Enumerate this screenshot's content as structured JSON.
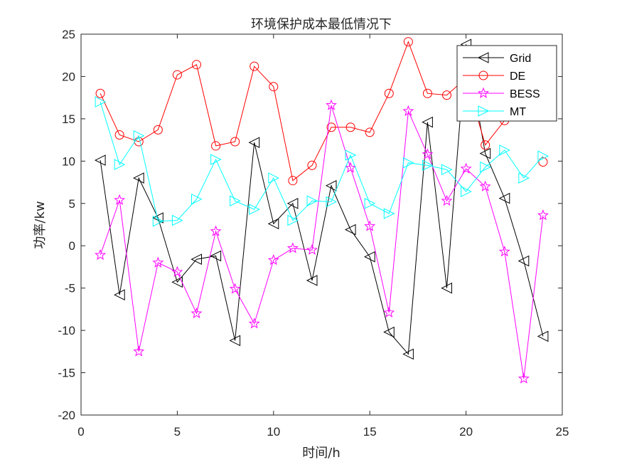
{
  "chart_data": {
    "type": "line",
    "title": "环境保护成本最低情况下",
    "xlabel": "时间/h",
    "ylabel": "功率/kw",
    "xlim": [
      0,
      25
    ],
    "ylim": [
      -20,
      25
    ],
    "xticks": [
      0,
      5,
      10,
      15,
      20,
      25
    ],
    "yticks": [
      -20,
      -15,
      -10,
      -5,
      0,
      5,
      10,
      15,
      20,
      25
    ],
    "grid": false,
    "legend_position": "top-right",
    "x": [
      1,
      2,
      3,
      4,
      5,
      6,
      7,
      8,
      9,
      10,
      11,
      12,
      13,
      14,
      15,
      16,
      17,
      18,
      19,
      20,
      21,
      22,
      23,
      24
    ],
    "series": [
      {
        "name": "Grid",
        "color": "#000000",
        "marker": "triangle-left",
        "values": [
          10.1,
          -5.8,
          8.0,
          3.3,
          -4.3,
          -1.6,
          -1.2,
          -11.2,
          12.2,
          2.6,
          5.0,
          -4.1,
          7.1,
          1.9,
          -1.3,
          -10.2,
          -12.8,
          14.6,
          -5.0,
          23.8,
          10.9,
          5.6,
          -1.8,
          -10.7
        ]
      },
      {
        "name": "DE",
        "color": "#ff0000",
        "marker": "circle",
        "values": [
          18.0,
          13.1,
          12.3,
          13.7,
          20.2,
          21.4,
          11.8,
          12.3,
          21.2,
          18.8,
          7.7,
          9.5,
          14.0,
          14.0,
          13.4,
          18.0,
          24.1,
          18.0,
          17.8,
          19.8,
          11.9,
          14.8,
          null,
          9.9
        ]
      },
      {
        "name": "BESS",
        "color": "#ff00ff",
        "marker": "star",
        "values": [
          -1.1,
          5.4,
          -12.5,
          -2.0,
          -3.1,
          -8.0,
          1.7,
          -5.1,
          -9.2,
          -1.7,
          -0.3,
          -0.5,
          16.6,
          9.2,
          2.3,
          -7.9,
          15.9,
          10.8,
          5.3,
          9.1,
          7.0,
          -0.7,
          -15.7,
          3.6
        ]
      },
      {
        "name": "MT",
        "color": "#00ffff",
        "marker": "triangle-right",
        "values": [
          17.0,
          9.6,
          13.0,
          2.9,
          3.0,
          5.5,
          10.2,
          5.3,
          4.3,
          8.0,
          3.0,
          5.3,
          5.2,
          10.7,
          5.0,
          3.8,
          9.8,
          9.5,
          9.0,
          6.4,
          9.3,
          11.3,
          8.0,
          10.6
        ]
      }
    ]
  }
}
